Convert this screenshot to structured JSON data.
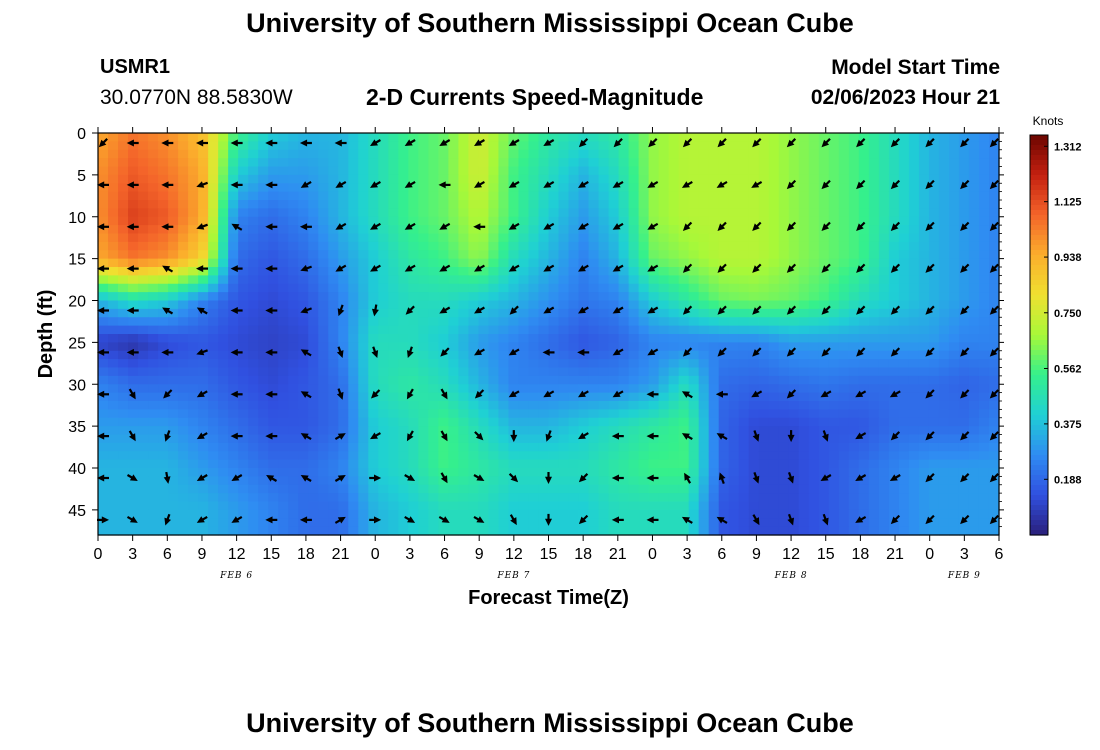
{
  "header": {
    "title": "University of Southern Mississippi Ocean Cube",
    "station": "USMR1",
    "coordinates": "30.0770N  88.5830W",
    "subtitle": "2-D Currents Speed-Magnitude",
    "model_start_label": "Model Start Time",
    "model_start_value": "02/06/2023 Hour 21"
  },
  "footer": {
    "title": "University of Southern Mississippi Ocean Cube"
  },
  "chart_data": {
    "type": "heatmap",
    "title": "2-D Currents Speed-Magnitude",
    "xlabel": "Forecast Time(Z)",
    "ylabel": "Depth (ft)",
    "x_hours_range": [
      0,
      78
    ],
    "x_tick_hours": [
      0,
      3,
      6,
      9,
      12,
      15,
      18,
      21,
      24,
      27,
      30,
      33,
      36,
      39,
      42,
      45,
      48,
      51,
      54,
      57,
      60,
      63,
      66,
      69,
      72,
      75,
      78
    ],
    "x_tick_labels": [
      "0",
      "3",
      "6",
      "9",
      "12",
      "15",
      "18",
      "21",
      "0",
      "3",
      "6",
      "9",
      "12",
      "15",
      "18",
      "21",
      "0",
      "3",
      "6",
      "9",
      "12",
      "15",
      "18",
      "21",
      "0",
      "3",
      "6"
    ],
    "date_labels": [
      {
        "hour": 12,
        "text": "FEB 6"
      },
      {
        "hour": 36,
        "text": "FEB 7"
      },
      {
        "hour": 60,
        "text": "FEB 8"
      },
      {
        "hour": 75,
        "text": "FEB 9"
      }
    ],
    "y_range_ft": [
      0,
      48
    ],
    "y_ticks": [
      0,
      5,
      10,
      15,
      20,
      25,
      30,
      35,
      40,
      45
    ],
    "colorbar": {
      "unit": "Knots",
      "min": 0.0,
      "max": 1.35,
      "ticks": [
        "1.312",
        "1.125",
        "0.938",
        "0.750",
        "0.562",
        "0.375",
        "0.188"
      ],
      "colors": [
        "#2a1f7a",
        "#3050e0",
        "#2f8cf2",
        "#1fd0d4",
        "#35f08c",
        "#a8f838",
        "#f0e030",
        "#fbae2c",
        "#f4642a",
        "#c42010",
        "#6a0500"
      ]
    },
    "speed_samples": {
      "depths_ft": [
        0,
        5,
        10,
        15,
        20,
        25,
        30,
        35,
        40,
        45
      ],
      "hours": [
        0,
        3,
        6,
        9,
        12,
        15,
        18,
        21,
        24,
        27,
        30,
        33,
        36,
        39,
        42,
        45,
        48,
        51,
        54,
        57,
        60,
        63,
        66,
        69,
        72,
        75,
        78
      ],
      "values": [
        [
          0.95,
          1.05,
          1.0,
          0.9,
          0.55,
          0.4,
          0.35,
          0.35,
          0.45,
          0.55,
          0.6,
          0.75,
          0.6,
          0.5,
          0.45,
          0.5,
          0.65,
          0.7,
          0.7,
          0.7,
          0.65,
          0.6,
          0.55,
          0.45,
          0.35,
          0.3,
          0.25
        ],
        [
          1.0,
          1.1,
          1.05,
          0.95,
          0.4,
          0.3,
          0.3,
          0.35,
          0.45,
          0.55,
          0.6,
          0.75,
          0.55,
          0.45,
          0.35,
          0.45,
          0.65,
          0.7,
          0.7,
          0.7,
          0.65,
          0.6,
          0.55,
          0.45,
          0.35,
          0.3,
          0.25
        ],
        [
          1.0,
          1.15,
          1.1,
          0.95,
          0.25,
          0.2,
          0.25,
          0.35,
          0.45,
          0.55,
          0.6,
          0.7,
          0.55,
          0.4,
          0.3,
          0.4,
          0.65,
          0.7,
          0.7,
          0.7,
          0.65,
          0.6,
          0.55,
          0.45,
          0.35,
          0.3,
          0.25
        ],
        [
          0.95,
          1.05,
          1.0,
          0.85,
          0.2,
          0.15,
          0.2,
          0.3,
          0.4,
          0.5,
          0.55,
          0.65,
          0.45,
          0.35,
          0.25,
          0.35,
          0.6,
          0.65,
          0.7,
          0.7,
          0.65,
          0.6,
          0.55,
          0.4,
          0.35,
          0.3,
          0.25
        ],
        [
          0.35,
          0.45,
          0.4,
          0.25,
          0.15,
          0.12,
          0.15,
          0.25,
          0.4,
          0.45,
          0.45,
          0.4,
          0.35,
          0.28,
          0.22,
          0.25,
          0.4,
          0.5,
          0.6,
          0.62,
          0.6,
          0.55,
          0.45,
          0.4,
          0.35,
          0.3,
          0.25
        ],
        [
          0.1,
          0.06,
          0.12,
          0.15,
          0.12,
          0.1,
          0.12,
          0.25,
          0.45,
          0.45,
          0.4,
          0.3,
          0.25,
          0.2,
          0.15,
          0.18,
          0.25,
          0.25,
          0.25,
          0.25,
          0.3,
          0.3,
          0.3,
          0.3,
          0.3,
          0.25,
          0.25
        ],
        [
          0.25,
          0.2,
          0.2,
          0.2,
          0.15,
          0.12,
          0.15,
          0.2,
          0.45,
          0.5,
          0.45,
          0.35,
          0.25,
          0.25,
          0.25,
          0.25,
          0.3,
          0.45,
          0.2,
          0.18,
          0.2,
          0.22,
          0.2,
          0.2,
          0.2,
          0.18,
          0.2
        ],
        [
          0.3,
          0.3,
          0.3,
          0.25,
          0.2,
          0.15,
          0.15,
          0.2,
          0.4,
          0.45,
          0.55,
          0.45,
          0.35,
          0.35,
          0.4,
          0.45,
          0.5,
          0.55,
          0.18,
          0.12,
          0.12,
          0.15,
          0.15,
          0.2,
          0.2,
          0.2,
          0.25
        ],
        [
          0.35,
          0.35,
          0.35,
          0.3,
          0.25,
          0.2,
          0.2,
          0.25,
          0.4,
          0.45,
          0.55,
          0.5,
          0.45,
          0.45,
          0.45,
          0.5,
          0.55,
          0.55,
          0.18,
          0.12,
          0.12,
          0.15,
          0.2,
          0.25,
          0.3,
          0.3,
          0.3
        ],
        [
          0.35,
          0.35,
          0.35,
          0.35,
          0.3,
          0.25,
          0.2,
          0.2,
          0.35,
          0.4,
          0.45,
          0.45,
          0.4,
          0.4,
          0.4,
          0.45,
          0.45,
          0.45,
          0.15,
          0.12,
          0.12,
          0.15,
          0.2,
          0.25,
          0.3,
          0.3,
          0.3
        ]
      ]
    },
    "vectors": {
      "depths_ft": [
        0,
        5,
        10,
        15,
        20,
        25,
        30,
        35,
        40,
        45
      ],
      "hours": [
        0,
        3,
        6,
        9,
        12,
        15,
        18,
        21,
        24,
        27,
        30,
        33,
        36,
        39,
        42,
        45,
        48,
        51,
        54,
        57,
        60,
        63,
        66,
        69,
        72,
        75,
        78
      ],
      "directions_deg": [
        [
          225,
          270,
          270,
          270,
          270,
          270,
          270,
          270,
          240,
          240,
          240,
          240,
          240,
          240,
          225,
          225,
          225,
          225,
          225,
          225,
          225,
          225,
          225,
          225,
          225,
          225,
          225
        ],
        [
          270,
          270,
          270,
          250,
          270,
          270,
          240,
          240,
          240,
          240,
          270,
          240,
          240,
          240,
          240,
          240,
          240,
          240,
          240,
          240,
          225,
          225,
          225,
          225,
          225,
          225,
          225
        ],
        [
          270,
          270,
          270,
          250,
          300,
          270,
          270,
          240,
          240,
          240,
          240,
          270,
          240,
          240,
          240,
          240,
          240,
          225,
          225,
          225,
          225,
          225,
          225,
          225,
          225,
          225,
          225
        ],
        [
          270,
          270,
          300,
          270,
          270,
          270,
          250,
          240,
          240,
          240,
          240,
          240,
          240,
          240,
          240,
          240,
          240,
          225,
          225,
          225,
          225,
          225,
          225,
          225,
          225,
          225,
          225
        ],
        [
          270,
          270,
          300,
          300,
          270,
          270,
          250,
          200,
          190,
          225,
          240,
          240,
          225,
          240,
          240,
          240,
          240,
          225,
          225,
          225,
          225,
          225,
          225,
          225,
          225,
          225,
          225
        ],
        [
          270,
          270,
          270,
          250,
          270,
          270,
          300,
          160,
          160,
          200,
          225,
          240,
          240,
          270,
          270,
          240,
          240,
          225,
          225,
          225,
          225,
          225,
          225,
          225,
          225,
          225,
          225
        ],
        [
          270,
          150,
          225,
          240,
          270,
          270,
          300,
          160,
          225,
          210,
          150,
          225,
          240,
          240,
          240,
          240,
          270,
          300,
          270,
          240,
          225,
          240,
          240,
          240,
          225,
          225,
          225
        ],
        [
          270,
          150,
          200,
          240,
          270,
          270,
          300,
          60,
          240,
          210,
          150,
          135,
          180,
          200,
          240,
          270,
          270,
          300,
          300,
          160,
          180,
          160,
          240,
          225,
          225,
          225,
          225
        ],
        [
          270,
          120,
          170,
          240,
          240,
          300,
          300,
          60,
          90,
          120,
          150,
          120,
          135,
          180,
          225,
          270,
          270,
          330,
          340,
          160,
          160,
          240,
          240,
          240,
          225,
          225,
          225
        ],
        [
          90,
          120,
          200,
          240,
          240,
          270,
          270,
          60,
          90,
          120,
          120,
          120,
          150,
          180,
          225,
          270,
          270,
          300,
          300,
          150,
          160,
          160,
          240,
          225,
          225,
          225,
          225
        ]
      ]
    }
  }
}
